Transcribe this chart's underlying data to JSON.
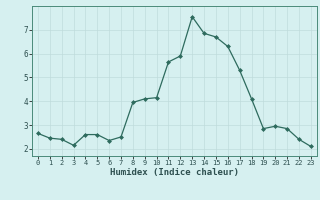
{
  "x": [
    0,
    1,
    2,
    3,
    4,
    5,
    6,
    7,
    8,
    9,
    10,
    11,
    12,
    13,
    14,
    15,
    16,
    17,
    18,
    19,
    20,
    21,
    22,
    23
  ],
  "y": [
    2.65,
    2.45,
    2.4,
    2.15,
    2.6,
    2.6,
    2.35,
    2.5,
    3.95,
    4.1,
    4.15,
    5.65,
    5.9,
    7.55,
    6.85,
    6.7,
    6.3,
    5.3,
    4.1,
    2.85,
    2.95,
    2.85,
    2.4,
    2.1
  ],
  "line_color": "#2e6b5e",
  "marker": "D",
  "marker_size": 2.0,
  "bg_color": "#d6f0f0",
  "grid_color": "#c0dcdc",
  "xlabel": "Humidex (Indice chaleur)",
  "ylim": [
    1.7,
    8.0
  ],
  "xlim": [
    -0.5,
    23.5
  ],
  "yticks": [
    2,
    3,
    4,
    5,
    6,
    7
  ],
  "xticks": [
    0,
    1,
    2,
    3,
    4,
    5,
    6,
    7,
    8,
    9,
    10,
    11,
    12,
    13,
    14,
    15,
    16,
    17,
    18,
    19,
    20,
    21,
    22,
    23
  ]
}
